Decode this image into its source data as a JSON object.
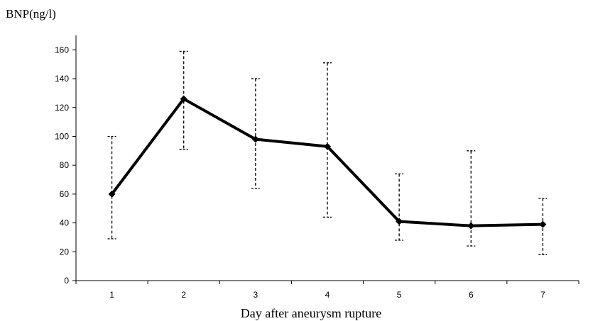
{
  "chart_data": {
    "type": "line",
    "title": "",
    "xlabel": "Day after aneurysm rupture",
    "ylabel": "BNP(ng/l)",
    "categories": [
      "1",
      "2",
      "3",
      "4",
      "5",
      "6",
      "7"
    ],
    "ylim": [
      0,
      170
    ],
    "yticks": [
      0,
      20,
      40,
      60,
      80,
      100,
      120,
      140,
      160
    ],
    "grid": false,
    "legend": "none",
    "series": [
      {
        "values": [
          60,
          126,
          98,
          93,
          41,
          38,
          39
        ],
        "error_low": [
          29,
          91,
          64,
          44,
          28,
          24,
          18
        ],
        "error_high": [
          100,
          159,
          140,
          151,
          74,
          90,
          57
        ],
        "color": "#000000",
        "marker": "diamond"
      }
    ]
  }
}
